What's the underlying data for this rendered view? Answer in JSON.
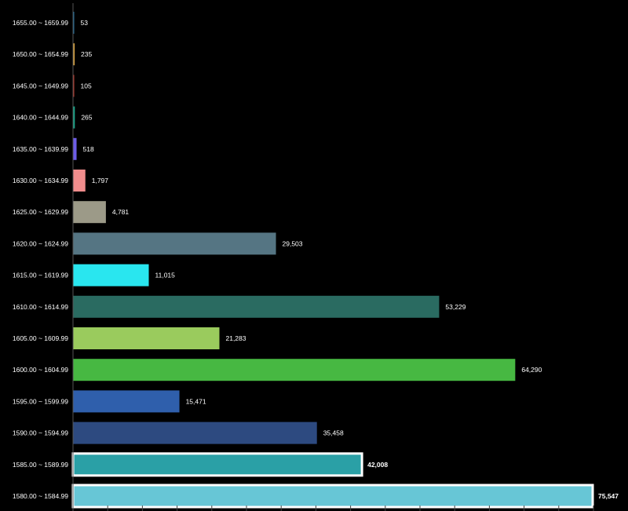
{
  "chart_data": {
    "type": "bar",
    "orientation": "horizontal",
    "title": "",
    "xlabel": "",
    "ylabel": "",
    "grid": false,
    "legend": "none",
    "background": "#000000",
    "label_color": "#ffffff",
    "categories": [
      "1655.00 ~ 1659.99",
      "1650.00 ~ 1654.99",
      "1645.00 ~ 1649.99",
      "1640.00 ~ 1644.99",
      "1635.00 ~ 1639.99",
      "1630.00 ~ 1634.99",
      "1625.00 ~ 1629.99",
      "1620.00 ~ 1624.99",
      "1615.00 ~ 1619.99",
      "1610.00 ~ 1614.99",
      "1605.00 ~ 1609.99",
      "1600.00 ~ 1604.99",
      "1595.00 ~ 1599.99",
      "1590.00 ~ 1594.99",
      "1585.00 ~ 1589.99",
      "1580.00 ~ 1584.99"
    ],
    "values": [
      53,
      235,
      105,
      265,
      518,
      1797,
      4781,
      29503,
      11015,
      53229,
      21283,
      64290,
      15471,
      35458,
      42008,
      75547
    ],
    "value_labels": [
      "53",
      "235",
      "105",
      "265",
      "518",
      "1,797",
      "4,781",
      "29,503",
      "11,015",
      "53,229",
      "21,283",
      "64,290",
      "15,471",
      "35,458",
      "42,008",
      "75,547"
    ],
    "colors": [
      "#1f6fa0",
      "#d9a441",
      "#c0392b",
      "#17a589",
      "#6c5ce7",
      "#f08c8c",
      "#9c9a88",
      "#557583",
      "#29e6ef",
      "#2a6b61",
      "#9acb5d",
      "#47b842",
      "#2f5fac",
      "#2d4a80",
      "#2aa0a6",
      "#67c6d6"
    ],
    "highlighted": [
      "1585.00 ~ 1589.99",
      "1580.00 ~ 1584.99"
    ],
    "xlim": [
      0,
      76000
    ]
  }
}
